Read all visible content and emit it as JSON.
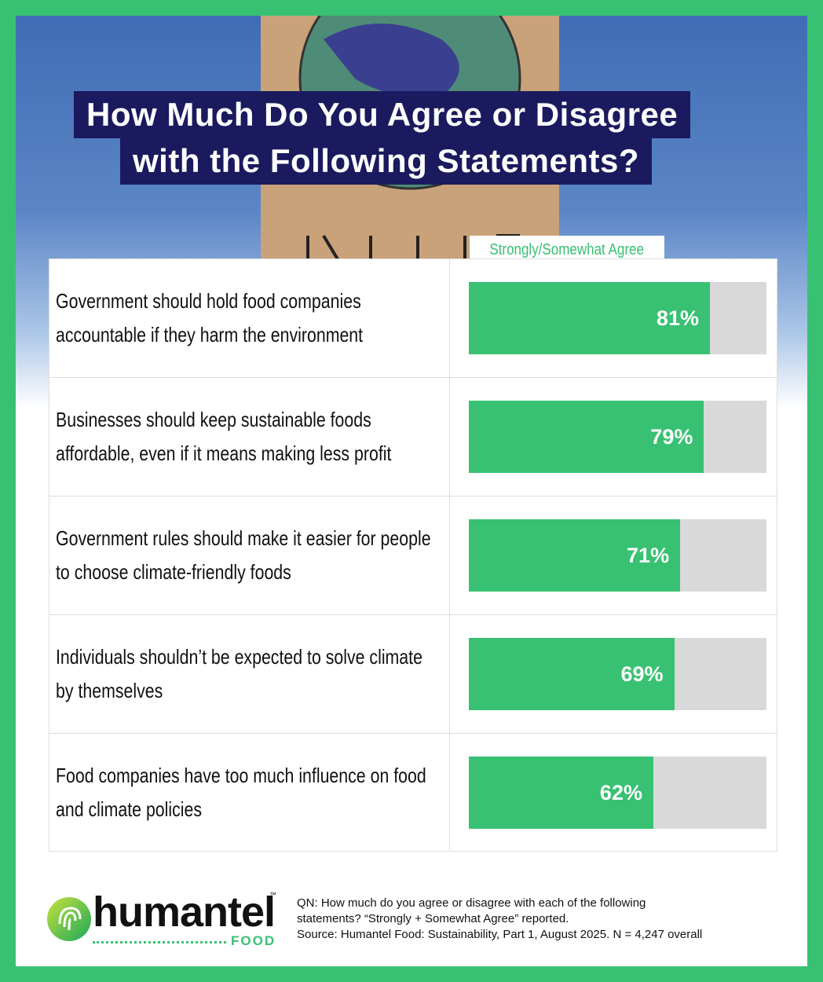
{
  "chart_data": {
    "type": "bar",
    "title": [
      "How Much Do You Agree or Disagree",
      "with the Following Statements?"
    ],
    "value_header": "Strongly/Somewhat Agree",
    "categories": [
      "Government should hold food companies accountable if they harm the environment",
      "Businesses should keep sustainable foods affordable, even if it means making less profit",
      "Government rules should make it easier for people to choose climate-friendly foods",
      "Individuals shouldn’t be expected to solve climate by themselves",
      "Food companies have too much influence on food and climate policies"
    ],
    "values": [
      81,
      79,
      71,
      69,
      62
    ],
    "value_labels": [
      "81%",
      "79%",
      "71%",
      "69%",
      "62%"
    ],
    "color": "#38c172",
    "xlim": [
      0,
      100
    ]
  },
  "logo": {
    "name": "humantel",
    "mark": "™",
    "sub": "FOOD"
  },
  "notes": [
    "QN: How much do you agree or disagree with each of the following",
    "statements? “Strongly + Somewhat Agree” reported.",
    "Source: Humantel Food: Sustainability, Part 1, August 2025.  N = 4,247 overall"
  ]
}
